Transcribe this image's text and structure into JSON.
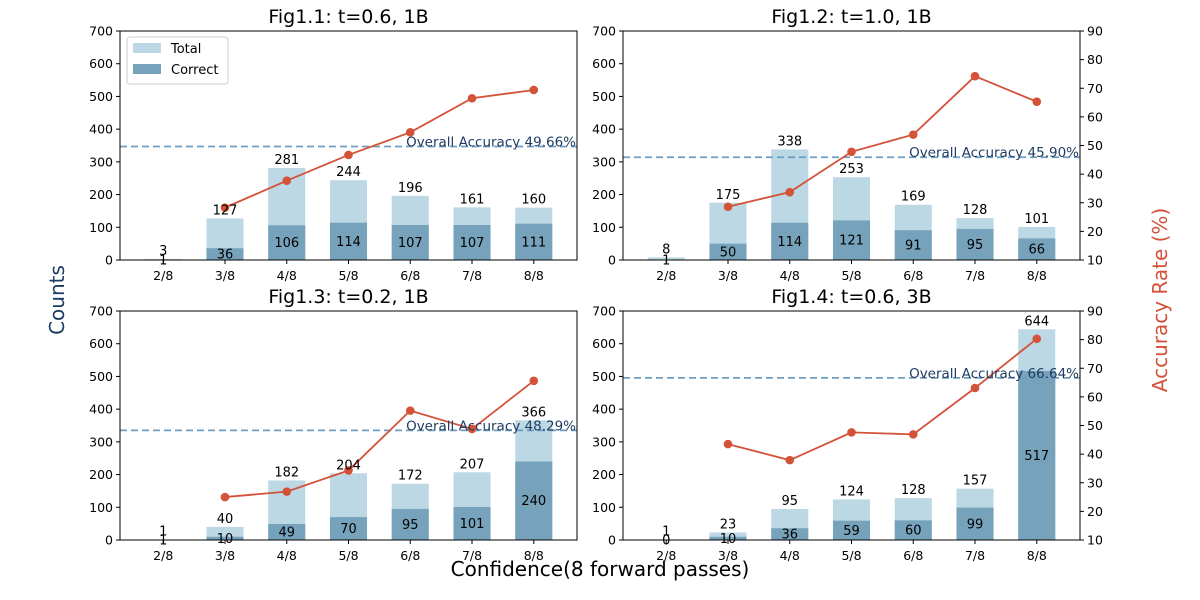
{
  "figure": {
    "ylabel_left": "Counts",
    "ylabel_right": "Accuracy Rate (%)",
    "xlabel": "Confidence(8 forward passes)",
    "legend": {
      "placement": "top-left",
      "entries": [
        "Total",
        "Correct"
      ]
    },
    "colors": {
      "total": "#bcd8e4",
      "correct": "#76a3bb",
      "line": "#d35238",
      "overall": "#6d9ec1",
      "acc_text": "#1f3d63",
      "right_label": "#d35238",
      "left_label": "#1f3d63"
    }
  },
  "chart_data": [
    {
      "type": "bar",
      "title": "Fig1.1: t=0.6, 1B",
      "categories": [
        "2/8",
        "3/8",
        "4/8",
        "5/8",
        "6/8",
        "7/8",
        "8/8"
      ],
      "ylim": [
        0,
        700
      ],
      "y_ticks": [
        0,
        100,
        200,
        300,
        400,
        500,
        600,
        700
      ],
      "series": [
        {
          "name": "Total",
          "values": [
            3,
            127,
            281,
            244,
            196,
            161,
            160
          ]
        },
        {
          "name": "Correct",
          "values": [
            1,
            36,
            106,
            114,
            107,
            107,
            111
          ]
        }
      ],
      "accuracy": {
        "values": [
          null,
          28.3,
          37.7,
          46.7,
          54.6,
          66.5,
          69.4
        ],
        "ylim": [
          10,
          90
        ]
      },
      "overall_accuracy": {
        "value": 49.66,
        "label": "Overall Accuracy 49.66%"
      },
      "show_legend": true,
      "show_right_ticks": false
    },
    {
      "type": "bar",
      "title": "Fig1.2: t=1.0, 1B",
      "categories": [
        "2/8",
        "3/8",
        "4/8",
        "5/8",
        "6/8",
        "7/8",
        "8/8"
      ],
      "ylim": [
        0,
        700
      ],
      "y_ticks": [
        0,
        100,
        200,
        300,
        400,
        500,
        600,
        700
      ],
      "series": [
        {
          "name": "Total",
          "values": [
            8,
            175,
            338,
            253,
            169,
            128,
            101
          ]
        },
        {
          "name": "Correct",
          "values": [
            1,
            50,
            114,
            121,
            91,
            95,
            66
          ]
        }
      ],
      "accuracy": {
        "values": [
          null,
          28.6,
          33.7,
          47.8,
          53.8,
          74.2,
          65.3
        ],
        "ylim": [
          10,
          90
        ]
      },
      "overall_accuracy": {
        "value": 45.9,
        "label": "Overall Accuracy 45.90%"
      },
      "show_legend": false,
      "show_right_ticks": true,
      "right_ticks": [
        10,
        20,
        30,
        40,
        50,
        60,
        70,
        80,
        90
      ]
    },
    {
      "type": "bar",
      "title": "Fig1.3: t=0.2, 1B",
      "categories": [
        "2/8",
        "3/8",
        "4/8",
        "5/8",
        "6/8",
        "7/8",
        "8/8"
      ],
      "ylim": [
        0,
        700
      ],
      "y_ticks": [
        0,
        100,
        200,
        300,
        400,
        500,
        600,
        700
      ],
      "series": [
        {
          "name": "Total",
          "values": [
            1,
            40,
            182,
            204,
            172,
            207,
            366
          ]
        },
        {
          "name": "Correct",
          "values": [
            1,
            10,
            49,
            70,
            95,
            101,
            240
          ]
        }
      ],
      "accuracy": {
        "values": [
          null,
          25.0,
          26.9,
          34.3,
          55.2,
          48.8,
          65.6
        ],
        "ylim": [
          10,
          90
        ]
      },
      "overall_accuracy": {
        "value": 48.29,
        "label": "Overall Accuracy 48.29%"
      },
      "show_legend": false,
      "show_right_ticks": false
    },
    {
      "type": "bar",
      "title": "Fig1.4: t=0.6, 3B",
      "categories": [
        "2/8",
        "3/8",
        "4/8",
        "5/8",
        "6/8",
        "7/8",
        "8/8"
      ],
      "ylim": [
        0,
        700
      ],
      "y_ticks": [
        0,
        100,
        200,
        300,
        400,
        500,
        600,
        700
      ],
      "series": [
        {
          "name": "Total",
          "values": [
            1,
            23,
            95,
            124,
            128,
            157,
            644
          ]
        },
        {
          "name": "Correct",
          "values": [
            0,
            10,
            36,
            59,
            60,
            99,
            517
          ]
        }
      ],
      "accuracy": {
        "values": [
          null,
          43.5,
          37.9,
          47.6,
          46.9,
          63.1,
          80.3
        ],
        "ylim": [
          10,
          90
        ]
      },
      "overall_accuracy": {
        "value": 66.64,
        "label": "Overall Accuracy 66.64%"
      },
      "show_legend": false,
      "show_right_ticks": true,
      "right_ticks": [
        10,
        20,
        30,
        40,
        50,
        60,
        70,
        80,
        90
      ]
    }
  ]
}
